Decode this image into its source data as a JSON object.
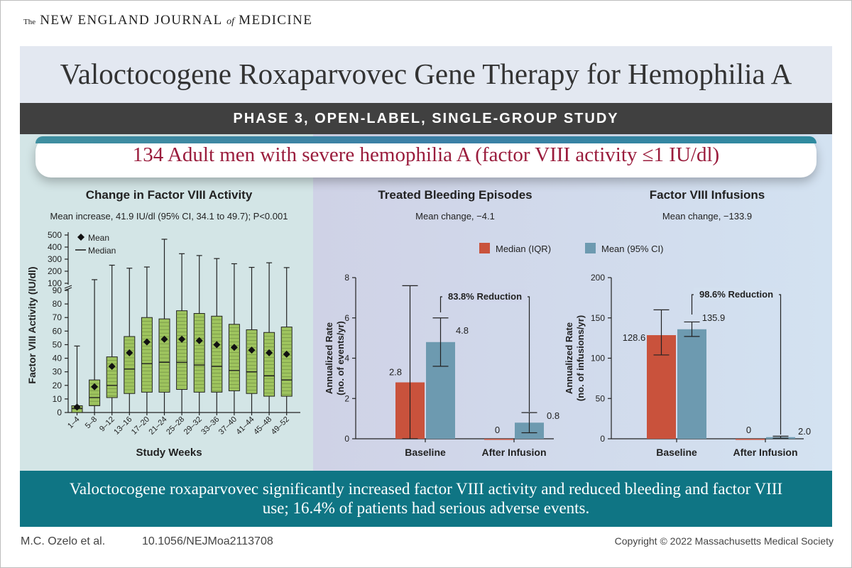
{
  "journal": {
    "the": "The",
    "name_part1": "NEW ENGLAND JOURNAL",
    "of": "of",
    "name_part2": "MEDICINE"
  },
  "title": "Valoctocogene Roxaparvovec Gene Therapy for Hemophilia A",
  "study_design": "PHASE 3, OPEN-LABEL, SINGLE-GROUP STUDY",
  "population": "134 Adult men with severe hemophilia A (factor VIII activity ≤1 IU/dl)",
  "conclusion": "Valoctocogene roxaparvovec significantly increased factor VIII activity and reduced bleeding and factor VIII use; 16.4% of patients had serious adverse events.",
  "authors": "M.C. Ozelo et al.",
  "doi": "10.1056/NEJMoa2113708",
  "copyright": "Copyright © 2022 Massachusetts Medical Society",
  "legend": {
    "median_label": "Median (IQR)",
    "mean_label": "Mean (95% CI)"
  },
  "colors": {
    "median_bar": "#c9523c",
    "mean_bar": "#6d9ab0",
    "box_fill": "#9ec45e",
    "accent": "#0f7584",
    "title_red": "#9a1c3c"
  },
  "chart_data": [
    {
      "type": "box",
      "title": "Change in Factor VIII Activity",
      "subtitle": "Mean increase, 41.9 IU/dl (95% CI, 34.1 to 49.7); P<0.001",
      "xlabel": "Study Weeks",
      "ylabel": "Factor VIII Activity (IU/dl)",
      "legend": {
        "mean": "Mean",
        "median": "Median"
      },
      "y_axis_break": [
        90,
        100
      ],
      "yticks_lower": [
        "0",
        "10",
        "20",
        "30",
        "40",
        "50",
        "60",
        "70",
        "80",
        "90"
      ],
      "yticks_upper": [
        "100",
        "200",
        "300",
        "400",
        "500"
      ],
      "categories": [
        "1–4",
        "5–8",
        "9–12",
        "13–16",
        "17–20",
        "21–24",
        "25–28",
        "29–32",
        "33–36",
        "37–40",
        "41–44",
        "45–48",
        "49–52"
      ],
      "q1": [
        0,
        5,
        11,
        14,
        15,
        15,
        17,
        15,
        15,
        16,
        14,
        12,
        12
      ],
      "median": [
        3,
        11,
        20,
        32,
        36,
        37,
        37,
        35,
        34,
        31,
        30,
        27,
        24
      ],
      "q3": [
        5,
        24,
        41,
        56,
        70,
        69,
        75,
        73,
        71,
        65,
        61,
        59,
        63
      ],
      "mean": [
        4,
        19,
        34,
        44,
        52,
        54,
        54,
        53,
        50,
        48,
        46,
        44,
        43
      ],
      "whisker_low": [
        0,
        0,
        0,
        0,
        0,
        0,
        0,
        0,
        0,
        0,
        0,
        0,
        0
      ],
      "whisker_high": [
        49,
        130,
        250,
        225,
        235,
        465,
        345,
        330,
        305,
        262,
        232,
        270,
        230
      ]
    },
    {
      "type": "bar",
      "title": "Treated Bleeding Episodes",
      "subtitle": "Mean change, −4.1",
      "ylabel": "Annualized Rate (no. of events/yr)",
      "categories": [
        "Baseline",
        "After Infusion"
      ],
      "ylim": [
        0,
        8
      ],
      "yticks": [
        "0",
        "2",
        "4",
        "6",
        "8"
      ],
      "series": [
        {
          "name": "Median (IQR)",
          "values": [
            2.8,
            0
          ],
          "err_low": [
            0,
            0
          ],
          "err_high": [
            7.6,
            0
          ]
        },
        {
          "name": "Mean (95% CI)",
          "values": [
            4.8,
            0.8
          ],
          "err_low": [
            3.6,
            0.3
          ],
          "err_high": [
            6.0,
            1.3
          ]
        }
      ],
      "value_labels": {
        "median": [
          "2.8",
          "0"
        ],
        "mean": [
          "4.8",
          "0.8"
        ]
      },
      "annotation": "83.8% Reduction"
    },
    {
      "type": "bar",
      "title": "Factor VIII Infusions",
      "subtitle": "Mean change, −133.9",
      "ylabel": "Annualized Rate (no. of infusions/yr)",
      "categories": [
        "Baseline",
        "After Infusion"
      ],
      "ylim": [
        0,
        200
      ],
      "yticks": [
        "0",
        "50",
        "100",
        "150",
        "200"
      ],
      "series": [
        {
          "name": "Median (IQR)",
          "values": [
            128.6,
            0
          ],
          "err_low": [
            104,
            0
          ],
          "err_high": [
            160,
            0
          ]
        },
        {
          "name": "Mean (95% CI)",
          "values": [
            135.9,
            2.0
          ],
          "err_low": [
            127,
            0.8
          ],
          "err_high": [
            145,
            3.2
          ]
        }
      ],
      "value_labels": {
        "median": [
          "128.6",
          "0"
        ],
        "mean": [
          "135.9",
          "2.0"
        ]
      },
      "annotation": "98.6% Reduction"
    }
  ]
}
